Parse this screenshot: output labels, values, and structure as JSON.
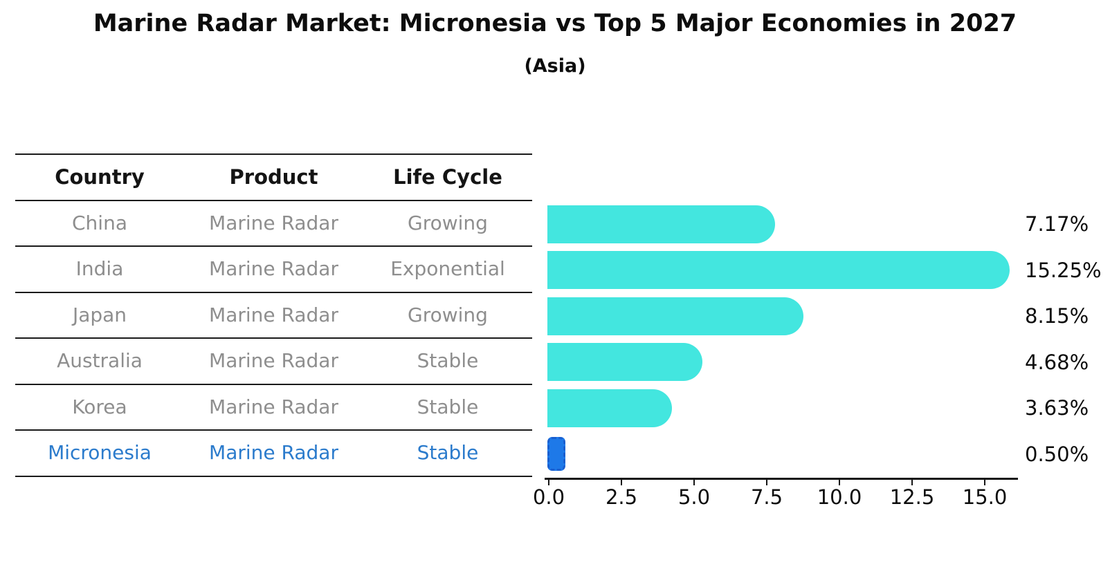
{
  "title": "Marine Radar Market: Micronesia vs Top 5 Major Economies in 2027",
  "subtitle": "(Asia)",
  "colors": {
    "bar_default": "#43e6df",
    "bar_highlight": "#1e79e8",
    "bar_highlight_border": "#1a5fd0",
    "highlight_text": "#2b7bcc",
    "row_text": "#8e8e8e",
    "header_text": "#141414"
  },
  "table": {
    "headers": [
      "Country",
      "Product",
      "Life Cycle"
    ],
    "rows": [
      {
        "country": "China",
        "product": "Marine Radar",
        "life_cycle": "Growing",
        "highlight": false
      },
      {
        "country": "India",
        "product": "Marine Radar",
        "life_cycle": "Exponential",
        "highlight": false
      },
      {
        "country": "Japan",
        "product": "Marine Radar",
        "life_cycle": "Growing",
        "highlight": false
      },
      {
        "country": "Australia",
        "product": "Marine Radar",
        "life_cycle": "Stable",
        "highlight": false
      },
      {
        "country": "Korea",
        "product": "Marine Radar",
        "life_cycle": "Stable",
        "highlight": false
      },
      {
        "country": "Micronesia",
        "product": "Marine Radar",
        "life_cycle": "Stable",
        "highlight": true
      }
    ]
  },
  "chart_data": {
    "type": "bar",
    "orientation": "horizontal",
    "title": "Marine Radar Market: Micronesia vs Top 5 Major Economies in 2027",
    "subtitle": "(Asia)",
    "categories": [
      "China",
      "India",
      "Japan",
      "Australia",
      "Korea",
      "Micronesia"
    ],
    "values": [
      7.17,
      15.25,
      8.15,
      4.68,
      3.63,
      0.5
    ],
    "value_labels": [
      "7.17%",
      "15.25%",
      "8.15%",
      "4.68%",
      "3.63%",
      "0.50%"
    ],
    "highlight_category": "Micronesia",
    "xlim": [
      0,
      16.1
    ],
    "x_ticks": [
      0.0,
      2.5,
      5.0,
      7.5,
      10.0,
      12.5,
      15.0
    ],
    "x_tick_labels": [
      "0.0",
      "2.5",
      "5.0",
      "7.5",
      "10.0",
      "12.5",
      "15.0"
    ],
    "grid": false,
    "legend": false
  }
}
